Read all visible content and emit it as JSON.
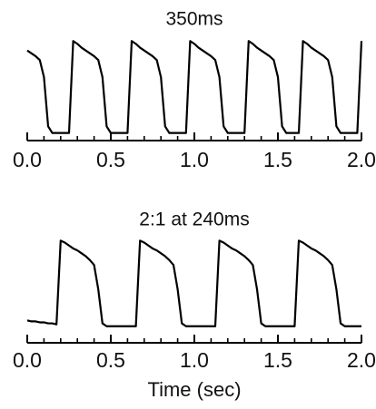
{
  "chart_data": [
    {
      "type": "line",
      "title": "350ms",
      "color": "#000000",
      "x": [
        0,
        0.025,
        0.05,
        0.075,
        0.1,
        0.125,
        0.15,
        0.175,
        0.2,
        0.225,
        0.25,
        0.275,
        0.3,
        0.325,
        0.35,
        0.375,
        0.4,
        0.425,
        0.45,
        0.475,
        0.5,
        0.525,
        0.55,
        0.575,
        0.6,
        0.625,
        0.65,
        0.675,
        0.7,
        0.725,
        0.75,
        0.775,
        0.8,
        0.825,
        0.85,
        0.875,
        0.9,
        0.925,
        0.95,
        0.975,
        1,
        1.025,
        1.05,
        1.075,
        1.1,
        1.125,
        1.15,
        1.175,
        1.2,
        1.225,
        1.25,
        1.275,
        1.3,
        1.325,
        1.35,
        1.375,
        1.4,
        1.425,
        1.45,
        1.475,
        1.5,
        1.525,
        1.55,
        1.575,
        1.6,
        1.625,
        1.65,
        1.675,
        1.7,
        1.725,
        1.75,
        1.775,
        1.8,
        1.825,
        1.85,
        1.875,
        1.9,
        1.925,
        1.95,
        1.975,
        2
      ],
      "values": [
        0.9,
        0.87,
        0.84,
        0.8,
        0.62,
        0.1,
        0.03,
        0.03,
        0.03,
        0.03,
        0.03,
        1,
        0.97,
        0.93,
        0.9,
        0.87,
        0.84,
        0.8,
        0.62,
        0.1,
        0.03,
        0.03,
        0.03,
        0.03,
        0.03,
        1,
        0.97,
        0.93,
        0.9,
        0.87,
        0.84,
        0.8,
        0.62,
        0.1,
        0.03,
        0.03,
        0.03,
        0.03,
        0.03,
        1,
        0.97,
        0.93,
        0.9,
        0.87,
        0.84,
        0.8,
        0.62,
        0.1,
        0.03,
        0.03,
        0.03,
        0.03,
        0.03,
        1,
        0.97,
        0.93,
        0.9,
        0.87,
        0.84,
        0.8,
        0.62,
        0.1,
        0.03,
        0.03,
        0.03,
        0.03,
        1,
        0.97,
        0.93,
        0.9,
        0.87,
        0.84,
        0.8,
        0.62,
        0.1,
        0.03,
        0.03,
        0.03,
        0.03,
        0.03,
        1
      ],
      "xlim": [
        0,
        2
      ],
      "ylim": [
        -0.05,
        1.05
      ],
      "xticks": [
        {
          "value": 0,
          "label": "0.0"
        },
        {
          "value": 0.5,
          "label": "0.5"
        },
        {
          "value": 1,
          "label": "1.0"
        },
        {
          "value": 1.5,
          "label": "1.5"
        },
        {
          "value": 2,
          "label": "2.0"
        }
      ],
      "xminorticks": [
        0.1,
        0.2,
        0.3,
        0.4,
        0.6,
        0.7,
        0.8,
        0.9,
        1.1,
        1.2,
        1.3,
        1.4,
        1.6,
        1.7,
        1.8,
        1.9
      ]
    },
    {
      "type": "line",
      "title": "2:1 at 240ms",
      "xlabel": "Time (sec)",
      "color": "#000000",
      "x": [
        0,
        0.025,
        0.05,
        0.075,
        0.1,
        0.125,
        0.15,
        0.175,
        0.2,
        0.225,
        0.25,
        0.275,
        0.3,
        0.325,
        0.35,
        0.375,
        0.4,
        0.425,
        0.45,
        0.475,
        0.5,
        0.525,
        0.55,
        0.575,
        0.6,
        0.625,
        0.65,
        0.675,
        0.7,
        0.725,
        0.75,
        0.775,
        0.8,
        0.825,
        0.85,
        0.875,
        0.9,
        0.925,
        0.95,
        0.975,
        1,
        1.025,
        1.05,
        1.075,
        1.1,
        1.125,
        1.15,
        1.175,
        1.2,
        1.225,
        1.25,
        1.275,
        1.3,
        1.325,
        1.35,
        1.375,
        1.4,
        1.425,
        1.45,
        1.475,
        1.5,
        1.525,
        1.55,
        1.575,
        1.6,
        1.625,
        1.65,
        1.675,
        1.7,
        1.725,
        1.75,
        1.775,
        1.8,
        1.825,
        1.85,
        1.875,
        1.9,
        1.925,
        1.95,
        1.975,
        2
      ],
      "values": [
        0.18,
        0.17,
        0.17,
        0.16,
        0.16,
        0.15,
        0.15,
        0.14,
        1,
        0.98,
        0.95,
        0.92,
        0.9,
        0.87,
        0.84,
        0.8,
        0.75,
        0.5,
        0.15,
        0.12,
        0.12,
        0.12,
        0.12,
        0.12,
        0.12,
        0.12,
        0.12,
        1,
        0.98,
        0.95,
        0.92,
        0.9,
        0.87,
        0.84,
        0.8,
        0.75,
        0.5,
        0.15,
        0.12,
        0.12,
        0.12,
        0.12,
        0.12,
        0.12,
        0.12,
        0.12,
        1,
        0.98,
        0.95,
        0.92,
        0.9,
        0.87,
        0.84,
        0.8,
        0.75,
        0.5,
        0.15,
        0.12,
        0.12,
        0.12,
        0.12,
        0.12,
        0.12,
        0.12,
        0.12,
        1,
        0.98,
        0.95,
        0.92,
        0.9,
        0.87,
        0.84,
        0.8,
        0.75,
        0.5,
        0.15,
        0.12,
        0.12,
        0.12,
        0.12,
        0.12
      ],
      "xlim": [
        0,
        2
      ],
      "ylim": [
        -0.05,
        1.05
      ],
      "xticks": [
        {
          "value": 0,
          "label": "0.0"
        },
        {
          "value": 0.5,
          "label": "0.5"
        },
        {
          "value": 1,
          "label": "1.0"
        },
        {
          "value": 1.5,
          "label": "1.5"
        },
        {
          "value": 2,
          "label": "2.0"
        }
      ],
      "xminorticks": [
        0.1,
        0.2,
        0.3,
        0.4,
        0.6,
        0.7,
        0.8,
        0.9,
        1.1,
        1.2,
        1.3,
        1.4,
        1.6,
        1.7,
        1.8,
        1.9
      ]
    }
  ]
}
